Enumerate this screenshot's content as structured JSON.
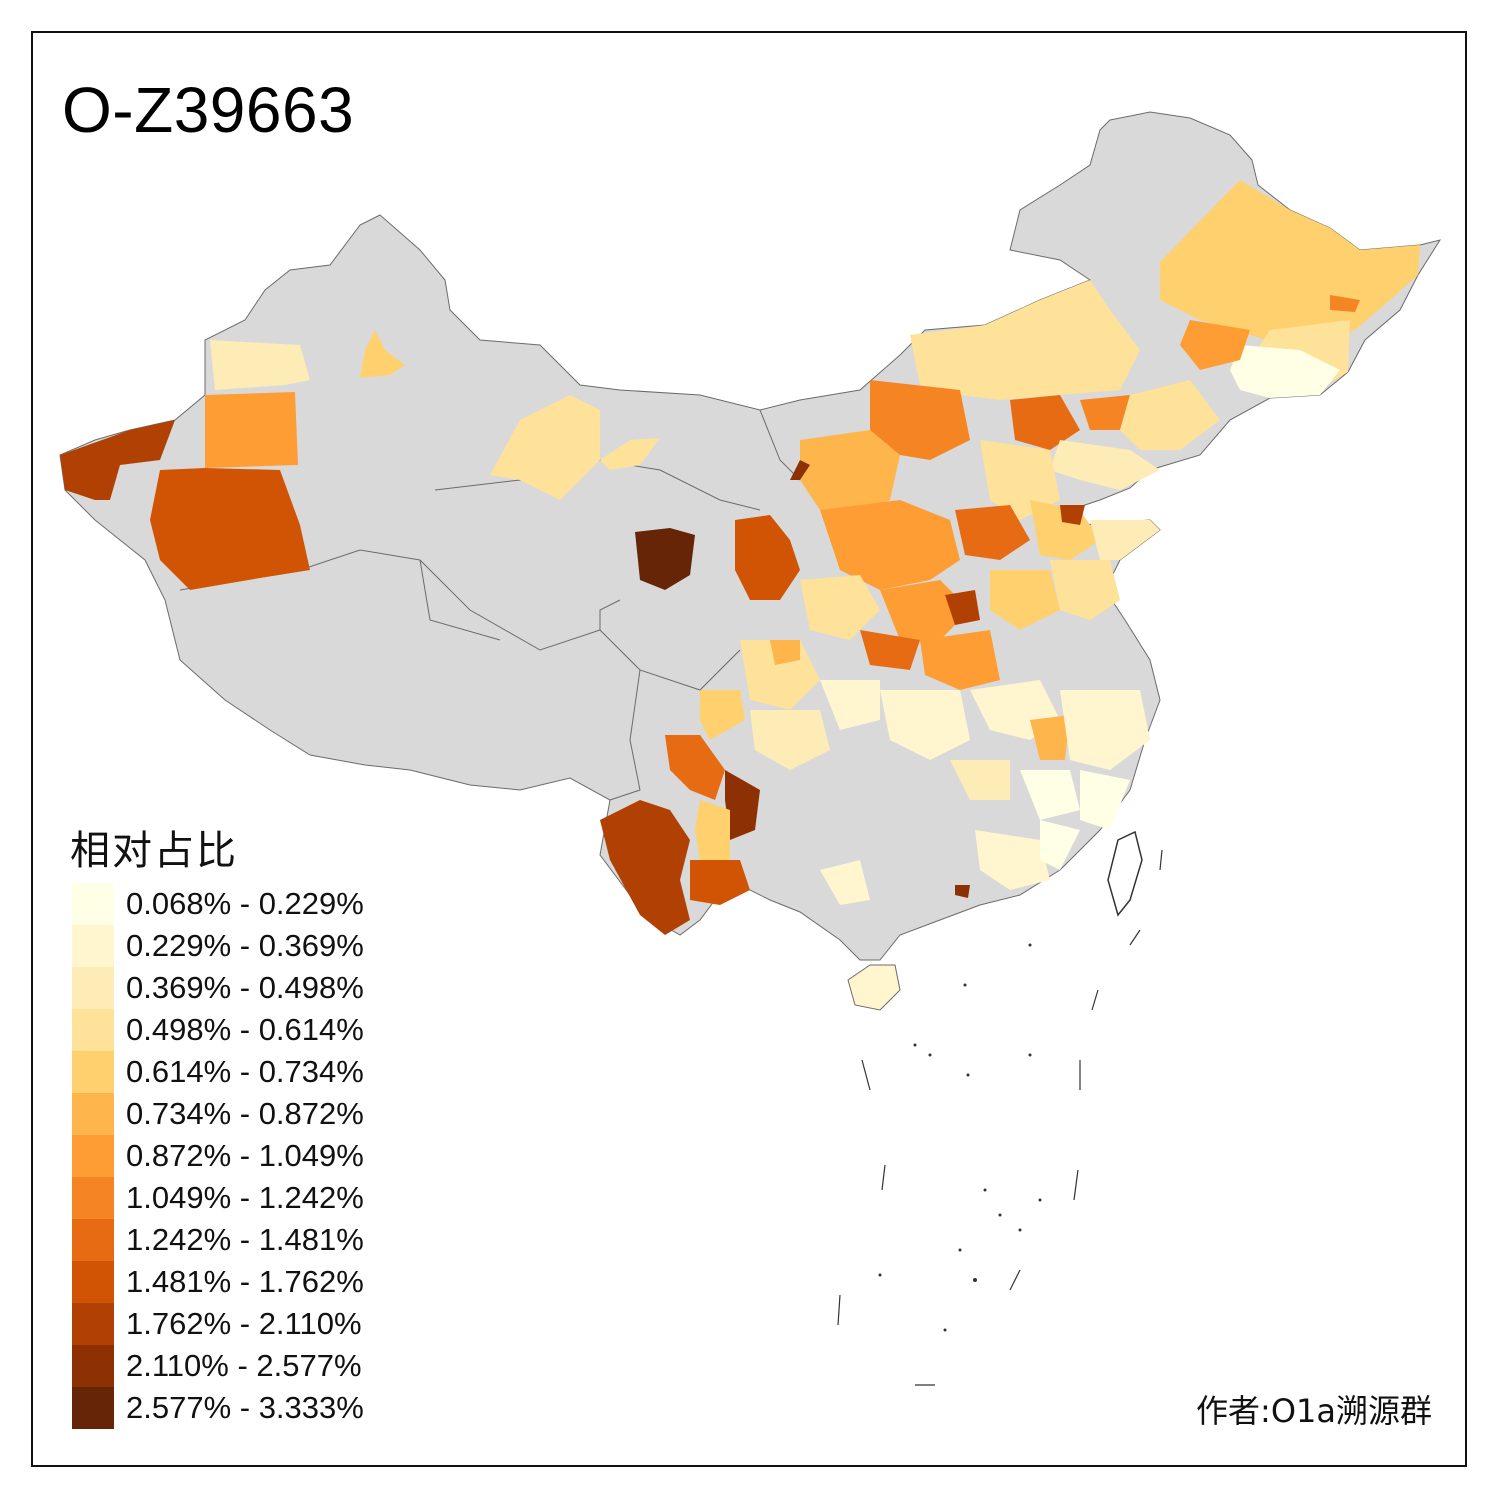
{
  "title": "O-Z39663",
  "legend": {
    "title": "相对占比",
    "items": [
      {
        "label": "0.068% - 0.229%",
        "color": "#FFFFE5"
      },
      {
        "label": "0.229% - 0.369%",
        "color": "#FFF6CF"
      },
      {
        "label": "0.369% - 0.498%",
        "color": "#FEECB6"
      },
      {
        "label": "0.498% - 0.614%",
        "color": "#FEE29A"
      },
      {
        "label": "0.614% - 0.734%",
        "color": "#FED06E"
      },
      {
        "label": "0.734% - 0.872%",
        "color": "#FEB64C"
      },
      {
        "label": "0.872% - 1.049%",
        "color": "#FE9D33"
      },
      {
        "label": "1.049% - 1.242%",
        "color": "#F58423"
      },
      {
        "label": "1.242% - 1.481%",
        "color": "#E66B12"
      },
      {
        "label": "1.481% - 1.762%",
        "color": "#D05404"
      },
      {
        "label": "1.762% - 2.110%",
        "color": "#B04103"
      },
      {
        "label": "2.110% - 2.577%",
        "color": "#8D3104"
      },
      {
        "label": "2.577% - 3.333%",
        "color": "#662506"
      }
    ]
  },
  "credit": "作者:O1a溯源群",
  "colors": {
    "no_data": "#D9D9D9",
    "border": "#6B6B6B",
    "frame": "#111111"
  }
}
